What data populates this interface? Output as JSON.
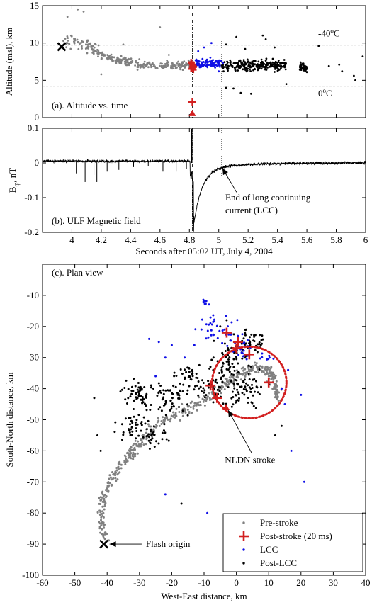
{
  "chart_data": [
    {
      "id": "a",
      "type": "scatter",
      "panel_label": "(a). Altitude vs. time",
      "xlabel": "",
      "ylabel": "Altitude (msl), km",
      "xlim": [
        3.8,
        6.0
      ],
      "ylim": [
        0,
        15
      ],
      "yticks": [
        0,
        5,
        10,
        15
      ],
      "yticklabels": [
        "0",
        "5",
        "10",
        "15"
      ],
      "xticks": [
        4.0,
        4.2,
        4.4,
        4.6,
        4.8,
        5.0,
        5.2,
        5.4,
        5.6,
        5.8,
        6.0
      ],
      "xticklabels": [],
      "grid": false,
      "temperature_lines": {
        "y": [
          10.7,
          9.7,
          8.1,
          6.5,
          4.2
        ]
      },
      "temp_labels": [
        {
          "text": "-40",
          "sup": "o",
          "unit": "C",
          "y": 10.7
        },
        {
          "text": "0",
          "sup": "o",
          "unit": "C",
          "y": 4.2
        }
      ],
      "stroke_time": 4.82,
      "lcc_end_time": 5.02,
      "origin": {
        "x": 3.93,
        "y": 9.5
      },
      "series": [
        {
          "role": "pre",
          "color": "#808080"
        },
        {
          "role": "post",
          "color": "#d21f1f",
          "points": [
            [
              4.82,
              2.1
            ]
          ]
        },
        {
          "role": "lcc",
          "color": "#1010e6"
        },
        {
          "role": "postlcc",
          "color": "#000000"
        },
        {
          "role": "nldn",
          "color": "#d21f1f",
          "points": [
            [
              4.82,
              0.3
            ]
          ]
        }
      ]
    },
    {
      "id": "b",
      "type": "line",
      "panel_label": "(b). ULF Magnetic field",
      "xlabel": "Seconds after 05:02 UT, July 4, 2004",
      "ylabel_main": "B",
      "ylabel_sub": "φ",
      "ylabel_unit": ", nT",
      "xlim": [
        3.8,
        6.0
      ],
      "ylim": [
        -0.2,
        0.1
      ],
      "yticks": [
        -0.2,
        -0.1,
        0,
        0.1
      ],
      "yticklabels": [
        "-0.2",
        "-0.1",
        "0",
        "0.1"
      ],
      "xticks": [
        4.0,
        4.2,
        4.4,
        4.6,
        4.8,
        5.0,
        5.2,
        5.4,
        5.6,
        5.8,
        6.0
      ],
      "xticklabels": [
        "4",
        "4.2",
        "4.4",
        "4.6",
        "4.8",
        "5",
        "5.2",
        "5.4",
        "5.6",
        "5.8",
        "6"
      ],
      "grid": false,
      "annotation": {
        "lines": [
          "End of long continuing",
          "current (LCC)"
        ],
        "target": [
          5.02,
          -0.015
        ]
      },
      "stroke_time": 4.82,
      "lcc_end_time": 5.02
    },
    {
      "id": "c",
      "type": "scatter",
      "panel_label": "(c). Plan view",
      "xlabel": "West-East distance, km",
      "ylabel": "South-North distance, km",
      "xlim": [
        -60,
        40
      ],
      "ylim": [
        -100,
        0
      ],
      "xticks": [
        -60,
        -50,
        -40,
        -30,
        -20,
        -10,
        0,
        10,
        20,
        30,
        40
      ],
      "xticklabels": [
        "-60",
        "-50",
        "-40",
        "-30",
        "-20",
        "-10",
        "0",
        "10",
        "20",
        "30",
        "40"
      ],
      "yticks": [
        -100,
        -90,
        -80,
        -70,
        -60,
        -50,
        -40,
        -30,
        -20,
        -10
      ],
      "yticklabels": [
        "-100",
        "-90",
        "-80",
        "-70",
        "-60",
        "-50",
        "-40",
        "-30",
        "-20",
        "-10"
      ],
      "grid": false,
      "legend_position": "bottom-right",
      "legend": [
        {
          "role": "pre",
          "label": "Pre-stroke"
        },
        {
          "role": "post",
          "label": "Post-stroke (20 ms)"
        },
        {
          "role": "lcc",
          "label": "LCC"
        },
        {
          "role": "postlcc",
          "label": "Post-LCC"
        }
      ],
      "annotations": [
        {
          "text": "NLDN stroke",
          "target": [
            -3.2,
            -46
          ],
          "text_at": [
            3,
            -63
          ]
        },
        {
          "text": "Flash origin",
          "target": [
            -41,
            -90
          ],
          "text_at": [
            -28,
            -90
          ]
        }
      ],
      "circle": {
        "center": [
          4,
          -38
        ],
        "radius_km": 11.5,
        "color": "#d21f1f"
      },
      "origin": {
        "x": -41,
        "y": -90
      },
      "nldn": {
        "x": -3.2,
        "y": -46
      },
      "series": [
        {
          "role": "pre",
          "color": "#808080"
        },
        {
          "role": "post",
          "color": "#d21f1f",
          "points": [
            [
              -3,
              -22
            ],
            [
              0.5,
              -25
            ],
            [
              4,
              -29
            ],
            [
              0,
              -27
            ],
            [
              10,
              -38
            ],
            [
              -8,
              -39
            ],
            [
              -6,
              -43
            ]
          ]
        },
        {
          "role": "lcc",
          "color": "#1010e6"
        },
        {
          "role": "postlcc",
          "color": "#000000"
        }
      ]
    }
  ]
}
